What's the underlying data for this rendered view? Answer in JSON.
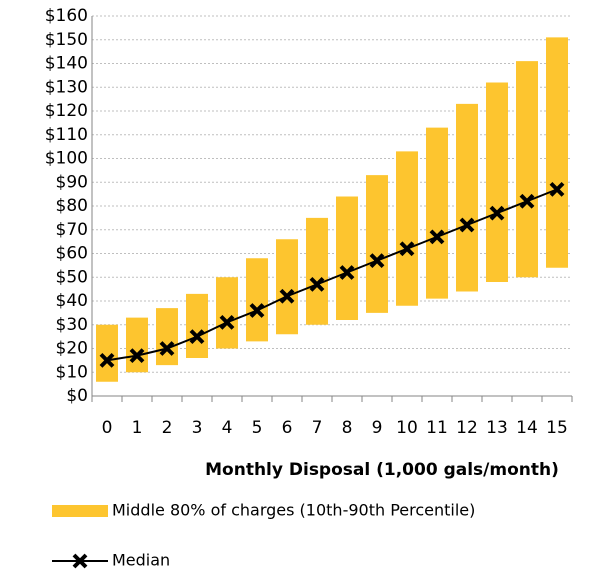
{
  "chart_data": {
    "type": "range_bar_line",
    "x_axis_label": "Monthly Disposal (1,000 gals/month)",
    "categories": [
      "0",
      "1",
      "2",
      "3",
      "4",
      "5",
      "6",
      "7",
      "8",
      "9",
      "10",
      "11",
      "12",
      "13",
      "14",
      "15"
    ],
    "range_series": {
      "name": "Middle 80% of charges (10th-90th Percentile)",
      "color": "#fdc52f",
      "low": [
        6,
        10,
        13,
        16,
        20,
        23,
        26,
        30,
        32,
        35,
        38,
        41,
        44,
        48,
        50,
        54
      ],
      "high": [
        30,
        33,
        37,
        43,
        50,
        58,
        66,
        75,
        84,
        93,
        103,
        113,
        123,
        132,
        141,
        151
      ]
    },
    "line_series": {
      "name": "Median",
      "color": "#000000",
      "values": [
        15,
        17,
        20,
        25,
        31,
        36,
        42,
        47,
        52,
        57,
        62,
        67,
        72,
        77,
        82,
        87
      ]
    },
    "ylim": [
      0,
      160
    ],
    "yticks": [
      {
        "value": 0,
        "label": "$0"
      },
      {
        "value": 10,
        "label": "$10"
      },
      {
        "value": 20,
        "label": "$20"
      },
      {
        "value": 30,
        "label": "$30"
      },
      {
        "value": 40,
        "label": "$40"
      },
      {
        "value": 50,
        "label": "$50"
      },
      {
        "value": 60,
        "label": "$60"
      },
      {
        "value": 70,
        "label": "$70"
      },
      {
        "value": 80,
        "label": "$80"
      },
      {
        "value": 90,
        "label": "$90"
      },
      {
        "value": 100,
        "label": "$100"
      },
      {
        "value": 110,
        "label": "$110"
      },
      {
        "value": 120,
        "label": "$120"
      },
      {
        "value": 130,
        "label": "$130"
      },
      {
        "value": 140,
        "label": "$140"
      },
      {
        "value": 150,
        "label": "$150"
      },
      {
        "value": 160,
        "label": "$160"
      }
    ],
    "grid": true
  }
}
